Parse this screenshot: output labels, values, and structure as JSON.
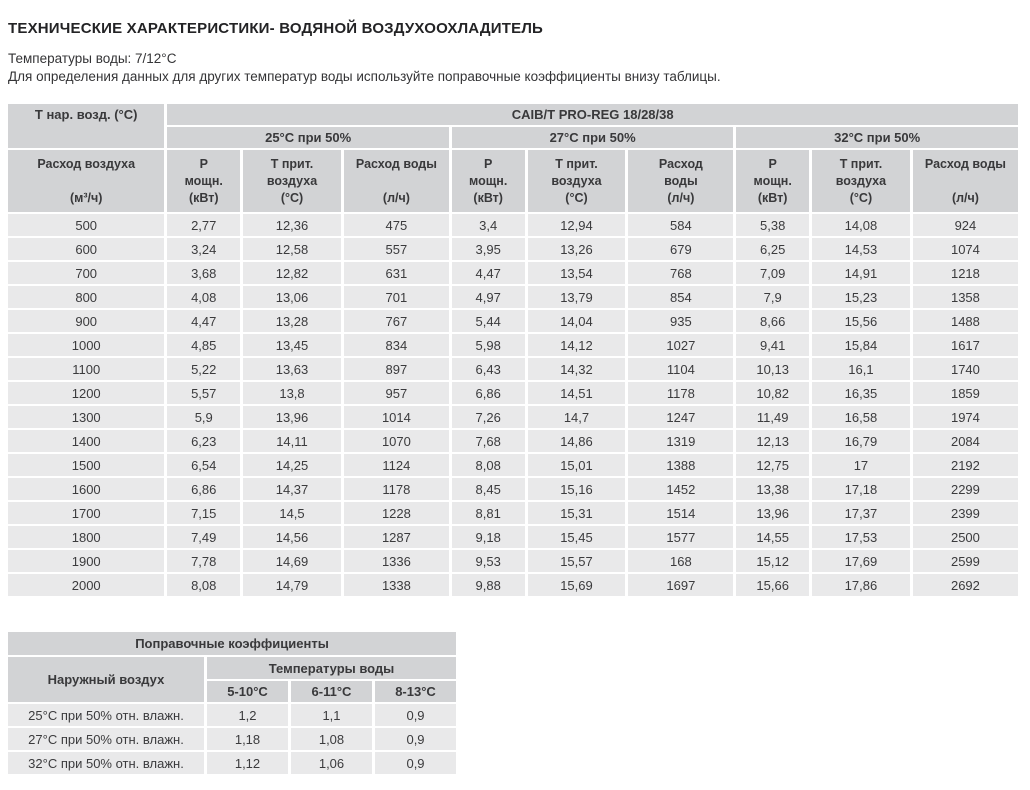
{
  "page": {
    "title": "ТЕХНИЧЕСКИЕ ХАРАКТЕРИСТИКИ- ВОДЯНОЙ ВОЗДУХООХЛАДИТЕЛЬ",
    "subtitle_water_temp": "Температуры воды: 7/12°С",
    "subtitle_note": "Для определения данных для других температур воды используйте поправочные коэффициенты внизу таблицы."
  },
  "main_table": {
    "corner_header": "Т нар. возд. (°C)",
    "model_header": "CAIB/T PRO-REG 18/28/38",
    "airflow_header": [
      "Расход воздуха",
      "",
      "(м³/ч)"
    ],
    "groups": [
      {
        "label": "25°С при 50%",
        "cols": [
          [
            "Р",
            "мощн.",
            "(кВт)"
          ],
          [
            "Т прит.",
            "воздуха",
            "(°С)"
          ],
          [
            "Расход воды",
            "",
            "(л/ч)"
          ]
        ]
      },
      {
        "label": "27°С при 50%",
        "cols": [
          [
            "Р",
            "мощн.",
            "(кВт)"
          ],
          [
            "Т прит.",
            "воздуха",
            "(°С)"
          ],
          [
            "Расход",
            "воды",
            "(л/ч)"
          ]
        ]
      },
      {
        "label": "32°С при 50%",
        "cols": [
          [
            "Р",
            "мощн.",
            "(кВт)"
          ],
          [
            "Т прит.",
            "воздуха",
            "(°С)"
          ],
          [
            "Расход воды",
            "",
            "(л/ч)"
          ]
        ]
      }
    ],
    "rows": [
      [
        "500",
        "2,77",
        "12,36",
        "475",
        "3,4",
        "12,94",
        "584",
        "5,38",
        "14,08",
        "924"
      ],
      [
        "600",
        "3,24",
        "12,58",
        "557",
        "3,95",
        "13,26",
        "679",
        "6,25",
        "14,53",
        "1074"
      ],
      [
        "700",
        "3,68",
        "12,82",
        "631",
        "4,47",
        "13,54",
        "768",
        "7,09",
        "14,91",
        "1218"
      ],
      [
        "800",
        "4,08",
        "13,06",
        "701",
        "4,97",
        "13,79",
        "854",
        "7,9",
        "15,23",
        "1358"
      ],
      [
        "900",
        "4,47",
        "13,28",
        "767",
        "5,44",
        "14,04",
        "935",
        "8,66",
        "15,56",
        "1488"
      ],
      [
        "1000",
        "4,85",
        "13,45",
        "834",
        "5,98",
        "14,12",
        "1027",
        "9,41",
        "15,84",
        "1617"
      ],
      [
        "1100",
        "5,22",
        "13,63",
        "897",
        "6,43",
        "14,32",
        "1104",
        "10,13",
        "16,1",
        "1740"
      ],
      [
        "1200",
        "5,57",
        "13,8",
        "957",
        "6,86",
        "14,51",
        "1178",
        "10,82",
        "16,35",
        "1859"
      ],
      [
        "1300",
        "5,9",
        "13,96",
        "1014",
        "7,26",
        "14,7",
        "1247",
        "11,49",
        "16,58",
        "1974"
      ],
      [
        "1400",
        "6,23",
        "14,11",
        "1070",
        "7,68",
        "14,86",
        "1319",
        "12,13",
        "16,79",
        "2084"
      ],
      [
        "1500",
        "6,54",
        "14,25",
        "1124",
        "8,08",
        "15,01",
        "1388",
        "12,75",
        "17",
        "2192"
      ],
      [
        "1600",
        "6,86",
        "14,37",
        "1178",
        "8,45",
        "15,16",
        "1452",
        "13,38",
        "17,18",
        "2299"
      ],
      [
        "1700",
        "7,15",
        "14,5",
        "1228",
        "8,81",
        "15,31",
        "1514",
        "13,96",
        "17,37",
        "2399"
      ],
      [
        "1800",
        "7,49",
        "14,56",
        "1287",
        "9,18",
        "15,45",
        "1577",
        "14,55",
        "17,53",
        "2500"
      ],
      [
        "1900",
        "7,78",
        "14,69",
        "1336",
        "9,53",
        "15,57",
        "168",
        "15,12",
        "17,69",
        "2599"
      ],
      [
        "2000",
        "8,08",
        "14,79",
        "1338",
        "9,88",
        "15,69",
        "1697",
        "15,66",
        "17,86",
        "2692"
      ]
    ]
  },
  "coeff_table": {
    "title": "Поправочные коэффициенты",
    "row_header": "Наружный воздух",
    "group_header": "Температуры воды",
    "col_headers": [
      "5-10°С",
      "6-11°С",
      "8-13°С"
    ],
    "rows": [
      {
        "label": "25°С при 50% отн. влажн.",
        "values": [
          "1,2",
          "1,1",
          "0,9"
        ]
      },
      {
        "label": "27°С при 50% отн. влажн.",
        "values": [
          "1,18",
          "1,08",
          "0,9"
        ]
      },
      {
        "label": "32°С при 50% отн. влажн.",
        "values": [
          "1,12",
          "1,06",
          "0,9"
        ]
      }
    ]
  },
  "colors": {
    "header_bg": "#d2d3d5",
    "cell_bg": "#e9e9ea",
    "text": "#3b3b3d"
  }
}
